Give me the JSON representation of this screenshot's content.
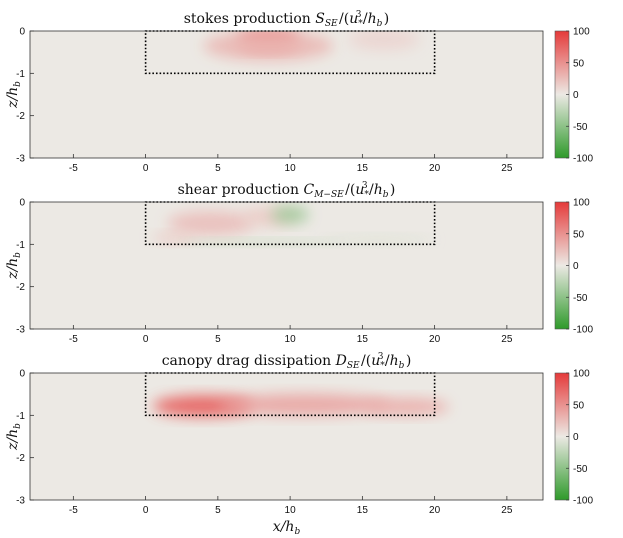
{
  "figure": {
    "xlabel": "x/h_b",
    "ylabel": "z/h_b"
  },
  "chart_data": [
    {
      "type": "heatmap",
      "title": "stokes production S_SE/(u_*^3/h_b)",
      "title_text": "stokes production",
      "title_math": "S_SE/(u_*^3/h_b)",
      "xlabel": "",
      "ylabel": "z/h_b",
      "xlim": [
        -8,
        27.5
      ],
      "ylim": [
        -3,
        0
      ],
      "xticks": [
        -5,
        0,
        5,
        10,
        15,
        20,
        25
      ],
      "yticks": [
        0,
        -1,
        -2,
        -3
      ],
      "canopy_box": {
        "x": [
          0,
          20
        ],
        "z": [
          -1,
          0
        ]
      },
      "colorbar": {
        "min": -100,
        "max": 100,
        "ticks": [
          100,
          50,
          0,
          -50,
          -100
        ],
        "low_color": "#2e9a2a",
        "mid_color": "#ece9e4",
        "high_color": "#e53a3a"
      },
      "features": [
        {
          "x": 8.5,
          "z": -0.25,
          "sx": 2.2,
          "sz": 0.2,
          "value": 95
        },
        {
          "x": 8.5,
          "z": -0.35,
          "sx": 4.5,
          "sz": 0.35,
          "value": 28
        },
        {
          "x": 16.5,
          "z": -0.2,
          "sx": 2.5,
          "sz": 0.25,
          "value": 12
        }
      ]
    },
    {
      "type": "heatmap",
      "title": "shear production C_M-SE/(u_*^3/h_b)",
      "title_text": "shear production",
      "title_math": "C_M-SE/(u_*^3/h_b)",
      "xlabel": "",
      "ylabel": "z/h_b",
      "xlim": [
        -8,
        27.5
      ],
      "ylim": [
        -3,
        0
      ],
      "xticks": [
        -5,
        0,
        5,
        10,
        15,
        20,
        25
      ],
      "yticks": [
        0,
        -1,
        -2,
        -3
      ],
      "canopy_box": {
        "x": [
          0,
          20
        ],
        "z": [
          -1,
          0
        ]
      },
      "colorbar": {
        "min": -100,
        "max": 100,
        "ticks": [
          100,
          50,
          0,
          -50,
          -100
        ],
        "low_color": "#2e9a2a",
        "mid_color": "#ece9e4",
        "high_color": "#e53a3a"
      },
      "features": [
        {
          "x": 4.5,
          "z": -0.5,
          "sx": 3.0,
          "sz": 0.28,
          "value": 25
        },
        {
          "x": 2.0,
          "z": -0.85,
          "sx": 1.6,
          "sz": 0.12,
          "value": 18
        },
        {
          "x": 8.5,
          "z": -0.35,
          "sx": 1.8,
          "sz": 0.22,
          "value": 18
        },
        {
          "x": 10.0,
          "z": -0.3,
          "sx": 1.3,
          "sz": 0.2,
          "value": -40
        },
        {
          "x": 8.0,
          "z": -0.95,
          "sx": 5.5,
          "sz": 0.06,
          "value": -18
        },
        {
          "x": 16.0,
          "z": -0.9,
          "sx": 4.0,
          "sz": 0.1,
          "value": -7
        }
      ]
    },
    {
      "type": "heatmap",
      "title": "canopy drag dissipation D_SE/(u_*^3/h_b)",
      "title_text": "canopy drag dissipation",
      "title_math": "D_SE/(u_*^3/h_b)",
      "xlabel": "x/h_b",
      "ylabel": "z/h_b",
      "xlim": [
        -8,
        27.5
      ],
      "ylim": [
        -3,
        0
      ],
      "xticks": [
        -5,
        0,
        5,
        10,
        15,
        20,
        25
      ],
      "yticks": [
        0,
        -1,
        -2,
        -3
      ],
      "canopy_box": {
        "x": [
          0,
          20
        ],
        "z": [
          -1,
          0
        ]
      },
      "colorbar": {
        "min": -100,
        "max": 100,
        "ticks": [
          100,
          50,
          0,
          -50,
          -100
        ],
        "low_color": "#2e9a2a",
        "mid_color": "#ece9e4",
        "high_color": "#e53a3a"
      },
      "features": [
        {
          "x": 4.0,
          "z": -0.78,
          "sx": 3.5,
          "sz": 0.25,
          "value": 80
        },
        {
          "x": 11.0,
          "z": -0.75,
          "sx": 6.0,
          "sz": 0.25,
          "value": 40
        },
        {
          "x": 18.0,
          "z": -0.8,
          "sx": 3.0,
          "sz": 0.2,
          "value": 35
        }
      ]
    }
  ]
}
